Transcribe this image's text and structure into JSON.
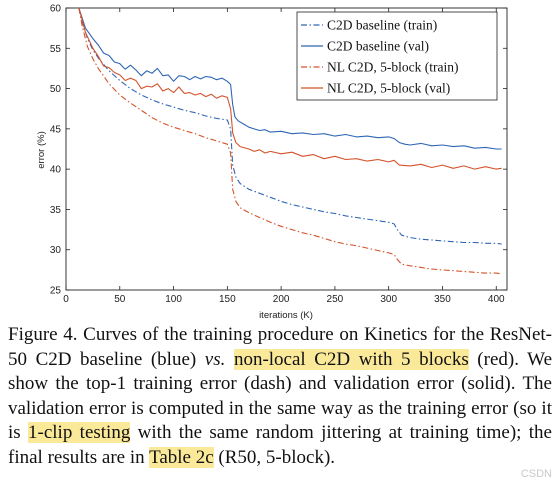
{
  "chart_data": {
    "type": "line",
    "title": "",
    "xlabel": "iterations (K)",
    "ylabel": "error (%)",
    "xlim": [
      0,
      410
    ],
    "ylim": [
      25,
      60
    ],
    "x_ticks": [
      0,
      50,
      100,
      150,
      200,
      250,
      300,
      350,
      400
    ],
    "y_ticks": [
      25,
      30,
      35,
      40,
      45,
      50,
      55,
      60
    ],
    "grid": false,
    "legend_position": "top-right",
    "series": [
      {
        "name": "C2D baseline (train)",
        "color": "#2e66b5",
        "dash": "dash-dot",
        "points": [
          [
            12,
            60
          ],
          [
            15,
            58.3
          ],
          [
            20,
            56.2
          ],
          [
            25,
            54.8
          ],
          [
            30,
            53.8
          ],
          [
            40,
            52.2
          ],
          [
            50,
            51
          ],
          [
            60,
            50
          ],
          [
            70,
            49.2
          ],
          [
            80,
            48.6
          ],
          [
            90,
            48.1
          ],
          [
            100,
            47.7
          ],
          [
            110,
            47.3
          ],
          [
            120,
            47
          ],
          [
            130,
            46.6
          ],
          [
            140,
            46.3
          ],
          [
            150,
            46.1
          ],
          [
            153,
            45
          ],
          [
            155,
            40.5
          ],
          [
            158,
            39
          ],
          [
            162,
            38.2
          ],
          [
            170,
            37.5
          ],
          [
            180,
            37
          ],
          [
            190,
            36.5
          ],
          [
            200,
            36
          ],
          [
            210,
            35.6
          ],
          [
            220,
            35.3
          ],
          [
            230,
            35
          ],
          [
            240,
            34.7
          ],
          [
            250,
            34.5
          ],
          [
            260,
            34.2
          ],
          [
            270,
            34
          ],
          [
            280,
            33.8
          ],
          [
            290,
            33.6
          ],
          [
            300,
            33.4
          ],
          [
            305,
            33.2
          ],
          [
            308,
            32.5
          ],
          [
            312,
            31.8
          ],
          [
            320,
            31.5
          ],
          [
            330,
            31.3
          ],
          [
            340,
            31.2
          ],
          [
            350,
            31.1
          ],
          [
            360,
            31
          ],
          [
            370,
            30.9
          ],
          [
            380,
            30.9
          ],
          [
            390,
            30.8
          ],
          [
            400,
            30.8
          ],
          [
            405,
            30.7
          ]
        ]
      },
      {
        "name": "C2D baseline (val)",
        "color": "#2e66b5",
        "dash": "solid",
        "points": [
          [
            12,
            60
          ],
          [
            18,
            57.5
          ],
          [
            25,
            56.2
          ],
          [
            30,
            55.4
          ],
          [
            35,
            54.4
          ],
          [
            40,
            54.1
          ],
          [
            45,
            53.3
          ],
          [
            50,
            53.1
          ],
          [
            55,
            52.4
          ],
          [
            60,
            52.9
          ],
          [
            65,
            52.3
          ],
          [
            70,
            51.6
          ],
          [
            75,
            52.2
          ],
          [
            80,
            51.9
          ],
          [
            85,
            52.5
          ],
          [
            90,
            51.6
          ],
          [
            95,
            51.7
          ],
          [
            100,
            50.9
          ],
          [
            105,
            51.6
          ],
          [
            110,
            51.5
          ],
          [
            115,
            51.1
          ],
          [
            120,
            51.5
          ],
          [
            125,
            51.2
          ],
          [
            130,
            51.5
          ],
          [
            135,
            51.4
          ],
          [
            140,
            51.1
          ],
          [
            145,
            51.3
          ],
          [
            150,
            50.9
          ],
          [
            153,
            50.5
          ],
          [
            155,
            48
          ],
          [
            157,
            46.5
          ],
          [
            160,
            46
          ],
          [
            165,
            45.6
          ],
          [
            170,
            45.2
          ],
          [
            175,
            45
          ],
          [
            180,
            44.8
          ],
          [
            185,
            44.9
          ],
          [
            190,
            44.6
          ],
          [
            200,
            44.7
          ],
          [
            210,
            44.4
          ],
          [
            220,
            44.5
          ],
          [
            230,
            44.3
          ],
          [
            240,
            44.4
          ],
          [
            250,
            44.1
          ],
          [
            260,
            44.3
          ],
          [
            270,
            44
          ],
          [
            280,
            44.1
          ],
          [
            290,
            43.9
          ],
          [
            300,
            44
          ],
          [
            305,
            43.8
          ],
          [
            310,
            43.3
          ],
          [
            315,
            43.1
          ],
          [
            320,
            43
          ],
          [
            330,
            43.2
          ],
          [
            340,
            42.9
          ],
          [
            350,
            43
          ],
          [
            360,
            42.8
          ],
          [
            370,
            42.9
          ],
          [
            380,
            42.6
          ],
          [
            390,
            42.7
          ],
          [
            400,
            42.5
          ],
          [
            405,
            42.5
          ]
        ]
      },
      {
        "name": "NL C2D, 5-block (train)",
        "color": "#d4532c",
        "dash": "dash-dot",
        "points": [
          [
            12,
            60
          ],
          [
            15,
            57.8
          ],
          [
            20,
            55.2
          ],
          [
            25,
            53.7
          ],
          [
            30,
            52.5
          ],
          [
            40,
            50.6
          ],
          [
            50,
            49.2
          ],
          [
            60,
            48.2
          ],
          [
            70,
            47.3
          ],
          [
            80,
            46.4
          ],
          [
            90,
            45.7
          ],
          [
            100,
            45.2
          ],
          [
            110,
            44.8
          ],
          [
            120,
            44.4
          ],
          [
            130,
            43.9
          ],
          [
            140,
            43.5
          ],
          [
            150,
            43.1
          ],
          [
            153,
            42
          ],
          [
            155,
            37.5
          ],
          [
            158,
            36
          ],
          [
            162,
            35.2
          ],
          [
            170,
            34.6
          ],
          [
            180,
            34
          ],
          [
            190,
            33.4
          ],
          [
            200,
            32.9
          ],
          [
            210,
            32.5
          ],
          [
            220,
            32.1
          ],
          [
            230,
            31.8
          ],
          [
            240,
            31.4
          ],
          [
            250,
            31
          ],
          [
            260,
            30.7
          ],
          [
            270,
            30.5
          ],
          [
            280,
            30.2
          ],
          [
            290,
            29.9
          ],
          [
            300,
            29.6
          ],
          [
            305,
            29.4
          ],
          [
            308,
            28.8
          ],
          [
            312,
            28.2
          ],
          [
            320,
            28
          ],
          [
            330,
            27.8
          ],
          [
            340,
            27.6
          ],
          [
            350,
            27.5
          ],
          [
            360,
            27.4
          ],
          [
            370,
            27.3
          ],
          [
            380,
            27.2
          ],
          [
            390,
            27.1
          ],
          [
            400,
            27.1
          ],
          [
            405,
            27
          ]
        ]
      },
      {
        "name": "NL C2D, 5-block (val)",
        "color": "#d4532c",
        "dash": "solid",
        "points": [
          [
            12,
            60
          ],
          [
            18,
            57
          ],
          [
            25,
            55
          ],
          [
            30,
            54
          ],
          [
            35,
            52.8
          ],
          [
            40,
            52.6
          ],
          [
            45,
            52
          ],
          [
            50,
            51.7
          ],
          [
            55,
            51
          ],
          [
            60,
            51.3
          ],
          [
            65,
            51
          ],
          [
            70,
            50
          ],
          [
            75,
            50.3
          ],
          [
            80,
            50.2
          ],
          [
            85,
            50.6
          ],
          [
            90,
            49.7
          ],
          [
            95,
            50
          ],
          [
            100,
            49.5
          ],
          [
            105,
            50.2
          ],
          [
            110,
            49.4
          ],
          [
            115,
            49.5
          ],
          [
            120,
            49.2
          ],
          [
            125,
            49.4
          ],
          [
            130,
            49
          ],
          [
            135,
            49.3
          ],
          [
            140,
            48.8
          ],
          [
            145,
            49.1
          ],
          [
            150,
            48.9
          ],
          [
            153,
            47.5
          ],
          [
            155,
            44.5
          ],
          [
            158,
            43.3
          ],
          [
            162,
            42.8
          ],
          [
            170,
            42.5
          ],
          [
            175,
            42.2
          ],
          [
            180,
            42.4
          ],
          [
            185,
            42
          ],
          [
            190,
            42.2
          ],
          [
            200,
            41.9
          ],
          [
            210,
            42.1
          ],
          [
            220,
            41.6
          ],
          [
            230,
            41.8
          ],
          [
            240,
            41.3
          ],
          [
            250,
            41.6
          ],
          [
            260,
            41.2
          ],
          [
            270,
            41.3
          ],
          [
            280,
            41
          ],
          [
            290,
            41.2
          ],
          [
            300,
            40.9
          ],
          [
            305,
            41.1
          ],
          [
            310,
            40.5
          ],
          [
            320,
            40.4
          ],
          [
            330,
            40.6
          ],
          [
            340,
            40.2
          ],
          [
            350,
            40.5
          ],
          [
            360,
            40.1
          ],
          [
            370,
            40.4
          ],
          [
            380,
            40
          ],
          [
            390,
            40.3
          ],
          [
            400,
            40
          ],
          [
            405,
            40.1
          ]
        ]
      }
    ]
  },
  "caption": {
    "p1": "Figure 4. Curves of the training procedure on Kinetics for the ResNet-50 C2D baseline (blue) ",
    "vs": "vs.",
    "p2": " ",
    "hl1": "non-local C2D with 5 blocks",
    "p3": " (red). We show the top-1 training error (dash) and validation error (solid). The validation error is computed in the same way as the training error (so it is ",
    "hl2": "1-clip testing",
    "p4": " with the same random jittering at training time); the final results are in ",
    "hl3": "Table 2c",
    "p5": " (R50, 5-block)."
  },
  "watermark": "CSDN"
}
